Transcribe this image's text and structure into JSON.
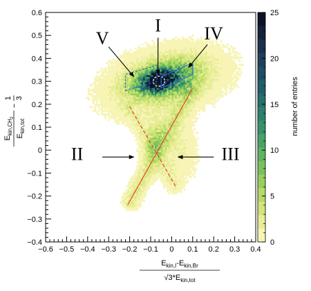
{
  "chart_data": {
    "type": "heatmap",
    "x_axis": {
      "range": [
        -0.6,
        0.4
      ],
      "ticks": [
        -0.6,
        -0.5,
        -0.4,
        -0.3,
        -0.2,
        -0.1,
        0,
        0.1,
        0.2,
        0.3,
        0.4
      ],
      "tick_labels": [
        "−0.6",
        "−0.5",
        "−0.4",
        "−0.3",
        "−0.2",
        "−0.1",
        "0",
        "0.1",
        "0.2",
        "0.3",
        "0.4"
      ],
      "label_num_parts": [
        "E",
        "kin,I",
        "-E",
        "kin,Br"
      ],
      "label_den_parts": [
        "√3*E",
        "kin,tot"
      ]
    },
    "y_axis": {
      "range": [
        -0.4,
        0.6
      ],
      "ticks": [
        -0.4,
        -0.3,
        -0.2,
        -0.1,
        0,
        0.1,
        0.2,
        0.3,
        0.4,
        0.5,
        0.6
      ],
      "tick_labels": [
        "−0.4",
        "−0.3",
        "−0.2",
        "−0.1",
        "0",
        "0.1",
        "0.2",
        "0.3",
        "0.4",
        "0.5",
        "0.6"
      ],
      "label_num_parts": [
        "E",
        "kin,CH",
        "2"
      ],
      "label_den_parts": [
        "E",
        "kin,tot"
      ],
      "label_suffix": [
        "−",
        "1",
        "3"
      ]
    },
    "colorbar": {
      "range": [
        0,
        25
      ],
      "ticks": [
        0,
        5,
        10,
        15,
        20,
        25
      ],
      "title": "number of entries",
      "colors": [
        "#f7f4b6",
        "#e7ed96",
        "#d2e47a",
        "#b5da66",
        "#97cf5c",
        "#7ac15d",
        "#5fb261",
        "#48a267",
        "#37916b",
        "#2c806d",
        "#256f6c",
        "#215e69",
        "#1f4e63",
        "#1d3f5a",
        "#1a304d",
        "#15213b",
        "#0d1426"
      ]
    },
    "density": [
      {
        "x": -0.06,
        "y": 0.3,
        "sx": 0.045,
        "sy": 0.025,
        "peak": 24,
        "rho": 0.2
      },
      {
        "x": -0.04,
        "y": 0.31,
        "sx": 0.1,
        "sy": 0.05,
        "peak": 12,
        "rho": 0.35
      },
      {
        "x": -0.03,
        "y": 0.3,
        "sx": 0.17,
        "sy": 0.09,
        "peak": 3,
        "rho": 0.3
      },
      {
        "x": -0.08,
        "y": 0.04,
        "sx": 0.035,
        "sy": 0.06,
        "peak": 4,
        "rho": 0.3
      },
      {
        "x": 0.02,
        "y": 0.02,
        "sx": 0.06,
        "sy": 0.09,
        "peak": 1.6,
        "rho": -0.2
      }
    ],
    "tracks": [
      {
        "x1": -0.2,
        "y1": -0.23,
        "x2": 0.1,
        "y2": 0.27,
        "peak": 2.5
      },
      {
        "x1": -0.2,
        "y1": 0.18,
        "x2": 0.02,
        "y2": -0.16,
        "peak": 1.3
      }
    ],
    "lines": [
      {
        "name": "solid",
        "style": "solid",
        "color": "#e8402c",
        "x1": -0.21,
        "y1": -0.24,
        "x2": 0.1,
        "y2": 0.27
      },
      {
        "name": "dashed",
        "style": "dashed",
        "color": "#e8402c",
        "x1": -0.2,
        "y1": 0.19,
        "x2": 0.02,
        "y2": -0.16
      }
    ],
    "regions": [
      {
        "label": "I",
        "style": "dashed",
        "color": "#ffffff",
        "shape": "ellipse",
        "cx": -0.06,
        "cy": 0.3,
        "rx": 0.028,
        "ry": 0.022
      },
      {
        "label": "V",
        "style": "dashed",
        "color": "#2f6fd6",
        "shape": "polygon",
        "points": [
          [
            -0.22,
            0.26
          ],
          [
            -0.07,
            0.26
          ],
          [
            -0.07,
            0.33
          ],
          [
            -0.22,
            0.33
          ]
        ],
        "skew": 0.04
      },
      {
        "label": "IV",
        "style": "solid",
        "color": "#2f6fd6",
        "shape": "polygon",
        "points": [
          [
            -0.05,
            0.27
          ],
          [
            0.1,
            0.33
          ],
          [
            0.1,
            0.38
          ],
          [
            -0.05,
            0.32
          ]
        ]
      }
    ],
    "annotations": [
      {
        "label": "I",
        "label_x": -0.065,
        "label_y": 0.535,
        "arrow_from": [
          -0.065,
          0.49
        ],
        "arrow_to": [
          -0.065,
          0.33
        ]
      },
      {
        "label": "V",
        "label_x": -0.33,
        "label_y": 0.48,
        "arrow_from": [
          -0.3,
          0.45
        ],
        "arrow_to": [
          -0.18,
          0.32
        ]
      },
      {
        "label": "IV",
        "label_x": 0.2,
        "label_y": 0.5,
        "arrow_from": [
          0.17,
          0.46
        ],
        "arrow_to": [
          0.08,
          0.36
        ]
      },
      {
        "label": "II",
        "label_x": -0.45,
        "label_y": -0.025,
        "arrow_from": [
          -0.33,
          -0.03
        ],
        "arrow_to": [
          -0.18,
          -0.03
        ]
      },
      {
        "label": "III",
        "label_x": 0.28,
        "label_y": -0.025,
        "arrow_from": [
          0.2,
          -0.03
        ],
        "arrow_to": [
          0.03,
          -0.03
        ]
      }
    ]
  }
}
